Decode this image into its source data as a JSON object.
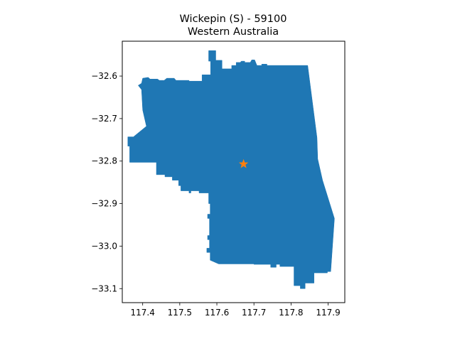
{
  "title": {
    "line1": "Wickepin (S) - 59100",
    "line2": "Western Australia"
  },
  "chart_data": {
    "type": "map",
    "xlim": [
      117.345,
      117.945
    ],
    "ylim": [
      -33.133,
      -32.518
    ],
    "x_ticks": [
      117.4,
      117.5,
      117.6,
      117.7,
      117.8,
      117.9
    ],
    "x_tick_labels": [
      "117.4",
      "117.5",
      "117.6",
      "117.7",
      "117.8",
      "117.9"
    ],
    "y_ticks": [
      -32.6,
      -32.7,
      -32.8,
      -32.9,
      -33.0,
      -33.1
    ],
    "y_tick_labels": [
      "−32.6",
      "−32.7",
      "−32.8",
      "−32.9",
      "−33.0",
      "−33.1"
    ],
    "region_color": "#1f77b4",
    "marker": {
      "lon": 117.672,
      "lat": -32.807,
      "symbol": "star",
      "color": "#ff7f0e"
    },
    "boundary": [
      [
        117.578,
        -32.54
      ],
      [
        117.597,
        -32.54
      ],
      [
        117.597,
        -32.563
      ],
      [
        117.614,
        -32.563
      ],
      [
        117.614,
        -32.583
      ],
      [
        117.64,
        -32.583
      ],
      [
        117.64,
        -32.575
      ],
      [
        117.652,
        -32.575
      ],
      [
        117.652,
        -32.568
      ],
      [
        117.663,
        -32.568
      ],
      [
        117.666,
        -32.565
      ],
      [
        117.675,
        -32.565
      ],
      [
        117.675,
        -32.568
      ],
      [
        117.69,
        -32.568
      ],
      [
        117.694,
        -32.562
      ],
      [
        117.702,
        -32.562
      ],
      [
        117.708,
        -32.575
      ],
      [
        117.721,
        -32.575
      ],
      [
        117.721,
        -32.572
      ],
      [
        117.735,
        -32.572
      ],
      [
        117.735,
        -32.575
      ],
      [
        117.845,
        -32.575
      ],
      [
        117.87,
        -32.745
      ],
      [
        117.872,
        -32.795
      ],
      [
        117.885,
        -32.845
      ],
      [
        117.917,
        -32.935
      ],
      [
        117.907,
        -33.06
      ],
      [
        117.898,
        -33.06
      ],
      [
        117.898,
        -33.063
      ],
      [
        117.862,
        -33.063
      ],
      [
        117.862,
        -33.087
      ],
      [
        117.838,
        -33.087
      ],
      [
        117.838,
        -33.1
      ],
      [
        117.825,
        -33.1
      ],
      [
        117.825,
        -33.093
      ],
      [
        117.808,
        -33.093
      ],
      [
        117.808,
        -33.048
      ],
      [
        117.77,
        -33.048
      ],
      [
        117.77,
        -33.043
      ],
      [
        117.76,
        -33.043
      ],
      [
        117.76,
        -33.05
      ],
      [
        117.745,
        -33.05
      ],
      [
        117.745,
        -33.043
      ],
      [
        117.7,
        -33.043
      ],
      [
        117.7,
        -33.042
      ],
      [
        117.605,
        -33.042
      ],
      [
        117.582,
        -33.033
      ],
      [
        117.582,
        -33.015
      ],
      [
        117.573,
        -33.015
      ],
      [
        117.573,
        -33.005
      ],
      [
        117.58,
        -33.005
      ],
      [
        117.58,
        -32.985
      ],
      [
        117.575,
        -32.985
      ],
      [
        117.575,
        -32.975
      ],
      [
        117.58,
        -32.975
      ],
      [
        117.58,
        -32.935
      ],
      [
        117.575,
        -32.935
      ],
      [
        117.575,
        -32.925
      ],
      [
        117.582,
        -32.925
      ],
      [
        117.582,
        -32.9
      ],
      [
        117.578,
        -32.9
      ],
      [
        117.578,
        -32.875
      ],
      [
        117.552,
        -32.875
      ],
      [
        117.552,
        -32.87
      ],
      [
        117.53,
        -32.87
      ],
      [
        117.53,
        -32.875
      ],
      [
        117.525,
        -32.875
      ],
      [
        117.525,
        -32.87
      ],
      [
        117.503,
        -32.87
      ],
      [
        117.503,
        -32.858
      ],
      [
        117.497,
        -32.858
      ],
      [
        117.497,
        -32.845
      ],
      [
        117.48,
        -32.845
      ],
      [
        117.48,
        -32.837
      ],
      [
        117.46,
        -32.837
      ],
      [
        117.46,
        -32.832
      ],
      [
        117.437,
        -32.832
      ],
      [
        117.437,
        -32.803
      ],
      [
        117.365,
        -32.803
      ],
      [
        117.365,
        -32.765
      ],
      [
        117.36,
        -32.765
      ],
      [
        117.36,
        -32.743
      ],
      [
        117.375,
        -32.743
      ],
      [
        117.41,
        -32.718
      ],
      [
        117.4,
        -32.68
      ],
      [
        117.397,
        -32.632
      ],
      [
        117.388,
        -32.622
      ],
      [
        117.397,
        -32.617
      ],
      [
        117.4,
        -32.605
      ],
      [
        117.415,
        -32.603
      ],
      [
        117.42,
        -32.607
      ],
      [
        117.44,
        -32.607
      ],
      [
        117.445,
        -32.61
      ],
      [
        117.458,
        -32.61
      ],
      [
        117.465,
        -32.605
      ],
      [
        117.485,
        -32.605
      ],
      [
        117.49,
        -32.61
      ],
      [
        117.525,
        -32.61
      ],
      [
        117.525,
        -32.612
      ],
      [
        117.56,
        -32.612
      ],
      [
        117.56,
        -32.597
      ],
      [
        117.583,
        -32.597
      ],
      [
        117.583,
        -32.565
      ],
      [
        117.578,
        -32.565
      ]
    ]
  }
}
